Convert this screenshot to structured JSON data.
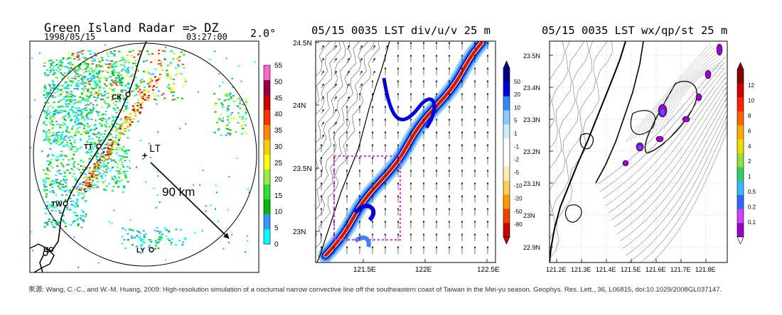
{
  "caption": "來源: Wang, C.-C., and W.-M. Huang, 2009: High-resolution simulation of a nocturnal narrow convective line off the southeastern coast of Taiwan in the Mei-yu season. Geophys. Res. Lett., 36, L06815, doi:10.1029/2008GL037147.",
  "colors": {
    "dz": [
      "#00ffff",
      "#3399ff",
      "#00bb00",
      "#33dd33",
      "#99ee44",
      "#ffff00",
      "#ffcc00",
      "#ff8800",
      "#ff3300",
      "#cc0000",
      "#990044",
      "#ff66cc"
    ],
    "div": [
      "#cc0000",
      "#ee4400",
      "#ff9900",
      "#ffcc55",
      "#ffeeaa",
      "#ffffff",
      "#ffffff",
      "#cceeff",
      "#88ccff",
      "#3388ff",
      "#0000dd",
      "#000088"
    ],
    "wx": [
      "#9900cc",
      "#cc44ff",
      "#3366ff",
      "#33bbff",
      "#33cc66",
      "#99dd44",
      "#eedd00",
      "#ffaa00",
      "#ff6600",
      "#ff2200",
      "#cc0000",
      "#880000"
    ],
    "box": "#dd44dd"
  },
  "chart_data": [
    {
      "type": "heatmap",
      "title": "Green Island Radar => DZ",
      "date": "1998/05/15",
      "time": "03:27:00",
      "elevation": "2.0°",
      "colorbar_ticks": [
        "55",
        "50",
        "45",
        "40",
        "35",
        "30",
        "25",
        "20",
        "15",
        "10",
        "5",
        "0"
      ],
      "stations": [
        {
          "label": "CK"
        },
        {
          "label": "TT"
        },
        {
          "label": "TW"
        },
        {
          "label": "HC"
        },
        {
          "label": "LY"
        }
      ],
      "radar_site": "LT",
      "range_label": "90 km"
    },
    {
      "type": "heatmap",
      "title": "05/15 0035 LST div/u/v 25 m",
      "xticks": [
        "121.5E",
        "122E",
        "122.5E"
      ],
      "yticks": [
        "24.5N",
        "24N",
        "23.5N",
        "23N"
      ],
      "colorbar_ticks": [
        "50",
        "20",
        "10",
        "5",
        "1",
        "-1",
        "-2",
        "-5",
        "-10",
        "-20",
        "-50",
        "-80"
      ]
    },
    {
      "type": "heatmap",
      "title": "05/15 0035 LST wx/qp/st 25 m",
      "xticks": [
        "121.2E",
        "121.3E",
        "121.4E",
        "121.5E",
        "121.6E",
        "121.7E",
        "121.8E"
      ],
      "yticks": [
        "23.5N",
        "23.4N",
        "23.3N",
        "23.2N",
        "23.1N",
        "23N",
        "22.9N"
      ],
      "colorbar_ticks": [
        "12",
        "10",
        "8",
        "6",
        "4",
        "2",
        "1",
        "0.5",
        "0.2",
        "0.1"
      ]
    }
  ]
}
